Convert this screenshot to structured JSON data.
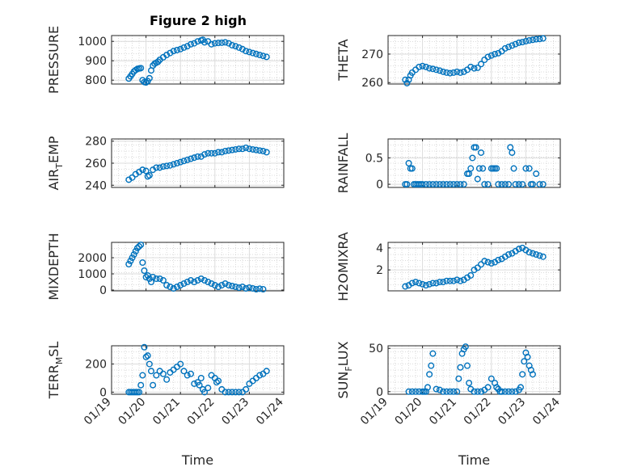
{
  "figure": {
    "title": "Figure 2 high"
  },
  "chart_data": [
    {
      "type": "scatter",
      "name": "PRESSURE",
      "ylabel": "PRESSURE",
      "ylim": [
        780,
        1030
      ],
      "yticks": [
        800,
        900,
        1000
      ],
      "yticklabels": [
        "800",
        "900",
        "1000"
      ],
      "xlim": [
        0,
        5
      ],
      "grid": true,
      "marker_color": "#0072BD",
      "x": [
        0.5,
        0.55,
        0.6,
        0.65,
        0.7,
        0.75,
        0.8,
        0.85,
        0.9,
        0.95,
        1.0,
        1.05,
        1.1,
        1.15,
        1.2,
        1.25,
        1.3,
        1.35,
        1.4,
        1.5,
        1.6,
        1.7,
        1.8,
        1.9,
        2.0,
        2.1,
        2.2,
        2.3,
        2.4,
        2.5,
        2.6,
        2.65,
        2.7,
        2.8,
        2.9,
        3.0,
        3.1,
        3.2,
        3.3,
        3.4,
        3.5,
        3.6,
        3.7,
        3.8,
        3.9,
        4.0,
        4.1,
        4.2,
        4.3,
        4.4,
        4.5
      ],
      "y": [
        808,
        820,
        832,
        845,
        852,
        858,
        860,
        862,
        800,
        790,
        788,
        795,
        810,
        850,
        875,
        885,
        890,
        895,
        905,
        918,
        930,
        940,
        950,
        955,
        960,
        968,
        975,
        985,
        990,
        1000,
        1005,
        1008,
        995,
        1000,
        985,
        990,
        992,
        993,
        995,
        990,
        980,
        975,
        968,
        960,
        950,
        945,
        940,
        935,
        930,
        925,
        920
      ]
    },
    {
      "type": "scatter",
      "name": "THETA",
      "ylabel": "THETA",
      "ylim": [
        259.5,
        276.5
      ],
      "yticks": [
        260,
        270
      ],
      "yticklabels": [
        "260",
        "270"
      ],
      "xlim": [
        0,
        5
      ],
      "grid": true,
      "marker_color": "#0072BD",
      "x": [
        0.5,
        0.55,
        0.6,
        0.65,
        0.7,
        0.8,
        0.9,
        1.0,
        1.1,
        1.2,
        1.3,
        1.4,
        1.5,
        1.6,
        1.7,
        1.8,
        1.9,
        2.0,
        2.1,
        2.2,
        2.3,
        2.4,
        2.5,
        2.6,
        2.7,
        2.8,
        2.9,
        3.0,
        3.1,
        3.2,
        3.3,
        3.4,
        3.5,
        3.6,
        3.7,
        3.8,
        3.9,
        4.0,
        4.1,
        4.2,
        4.3,
        4.4,
        4.5
      ],
      "y": [
        261,
        259.8,
        261,
        262.5,
        263.5,
        264.5,
        265.5,
        265.8,
        265.5,
        265,
        264.8,
        264.5,
        264.2,
        263.8,
        263.5,
        263.3,
        263.5,
        263.8,
        263.5,
        263.8,
        264.5,
        265.5,
        265,
        265.2,
        266.5,
        268,
        269,
        269.5,
        270,
        270.3,
        271,
        272,
        272.5,
        273,
        273.5,
        274,
        274.2,
        274.5,
        274.8,
        275,
        275.2,
        275.3,
        275.5
      ]
    },
    {
      "type": "scatter",
      "name": "AIR_TEMP",
      "ylabel": "AIR_TEMP",
      "ylim": [
        238,
        282
      ],
      "yticks": [
        240,
        260,
        280
      ],
      "yticklabels": [
        "240",
        "260",
        "280"
      ],
      "xlim": [
        0,
        5
      ],
      "grid": true,
      "marker_color": "#0072BD",
      "x": [
        0.5,
        0.6,
        0.7,
        0.8,
        0.9,
        1.0,
        1.05,
        1.1,
        1.2,
        1.3,
        1.4,
        1.5,
        1.6,
        1.7,
        1.8,
        1.9,
        2.0,
        2.1,
        2.2,
        2.3,
        2.4,
        2.5,
        2.6,
        2.7,
        2.8,
        2.9,
        3.0,
        3.1,
        3.2,
        3.3,
        3.4,
        3.5,
        3.6,
        3.7,
        3.8,
        3.9,
        4.0,
        4.1,
        4.2,
        4.3,
        4.4,
        4.5
      ],
      "y": [
        245,
        247,
        250,
        252,
        254,
        253,
        248,
        249,
        254,
        256,
        256,
        257,
        257.5,
        258,
        259,
        260,
        261,
        262,
        263,
        264,
        265,
        266,
        266,
        268,
        269,
        269,
        269,
        270,
        270,
        271,
        271.5,
        272,
        272.5,
        273,
        273,
        274,
        273,
        272.5,
        272,
        271.5,
        271,
        270
      ]
    },
    {
      "type": "scatter",
      "name": "RAINFALL",
      "ylabel": "RAINFALL",
      "ylim": [
        -0.06,
        0.86
      ],
      "yticks": [
        0,
        0.5
      ],
      "yticklabels": [
        "0",
        "0.5"
      ],
      "xlim": [
        0,
        5
      ],
      "grid": true,
      "marker_color": "#0072BD",
      "x": [
        0.5,
        0.55,
        0.6,
        0.65,
        0.7,
        0.75,
        0.8,
        0.85,
        0.9,
        0.95,
        1.0,
        1.1,
        1.2,
        1.3,
        1.4,
        1.5,
        1.6,
        1.7,
        1.8,
        1.9,
        2.0,
        2.1,
        2.2,
        2.3,
        2.35,
        2.4,
        2.45,
        2.5,
        2.55,
        2.6,
        2.65,
        2.7,
        2.75,
        2.8,
        2.9,
        3.0,
        3.05,
        3.1,
        3.15,
        3.2,
        3.3,
        3.4,
        3.5,
        3.55,
        3.6,
        3.65,
        3.7,
        3.8,
        3.9,
        4.0,
        4.1,
        4.15,
        4.2,
        4.3,
        4.4,
        4.5
      ],
      "y": [
        0,
        0,
        0.4,
        0.3,
        0.3,
        0,
        0,
        0,
        0,
        0,
        0,
        0,
        0,
        0,
        0,
        0,
        0,
        0,
        0,
        0,
        0,
        0,
        0,
        0.2,
        0.2,
        0.3,
        0.5,
        0.7,
        0.7,
        0.1,
        0.3,
        0.6,
        0.3,
        0,
        0,
        0.3,
        0.3,
        0.3,
        0.3,
        0,
        0,
        0,
        0,
        0.7,
        0.6,
        0.3,
        0,
        0,
        0,
        0.3,
        0.3,
        0,
        0,
        0.2,
        0,
        0
      ]
    },
    {
      "type": "scatter",
      "name": "MIXDEPTH",
      "ylabel": "MIXDEPTH",
      "ylim": [
        -50,
        2950
      ],
      "yticks": [
        0,
        1000,
        2000
      ],
      "yticklabels": [
        "0",
        "1000",
        "2000"
      ],
      "xlim": [
        0,
        5
      ],
      "grid": true,
      "marker_color": "#0072BD",
      "x": [
        0.5,
        0.55,
        0.6,
        0.65,
        0.7,
        0.75,
        0.8,
        0.85,
        0.9,
        0.95,
        1.0,
        1.05,
        1.1,
        1.15,
        1.2,
        1.3,
        1.4,
        1.5,
        1.6,
        1.7,
        1.8,
        1.9,
        2.0,
        2.1,
        2.2,
        2.3,
        2.4,
        2.5,
        2.6,
        2.7,
        2.8,
        2.9,
        3.0,
        3.1,
        3.2,
        3.3,
        3.4,
        3.5,
        3.6,
        3.7,
        3.8,
        3.9,
        4.0,
        4.1,
        4.2,
        4.3,
        4.4
      ],
      "y": [
        1600,
        1800,
        2000,
        2200,
        2400,
        2600,
        2700,
        2800,
        1700,
        1200,
        800,
        900,
        700,
        500,
        800,
        700,
        700,
        600,
        300,
        200,
        100,
        200,
        300,
        400,
        500,
        600,
        500,
        600,
        700,
        600,
        500,
        400,
        300,
        200,
        300,
        400,
        300,
        250,
        200,
        150,
        200,
        100,
        150,
        100,
        50,
        80,
        50
      ]
    },
    {
      "type": "scatter",
      "name": "H2OMIXRA",
      "ylabel": "H2OMIXRA",
      "ylim": [
        0.1,
        4.5
      ],
      "yticks": [
        2,
        4
      ],
      "yticklabels": [
        "2",
        "4"
      ],
      "xlim": [
        0,
        5
      ],
      "grid": true,
      "marker_color": "#0072BD",
      "x": [
        0.5,
        0.6,
        0.7,
        0.8,
        0.9,
        1.0,
        1.1,
        1.2,
        1.3,
        1.4,
        1.5,
        1.6,
        1.7,
        1.8,
        1.9,
        2.0,
        2.1,
        2.2,
        2.3,
        2.4,
        2.5,
        2.6,
        2.7,
        2.8,
        2.9,
        3.0,
        3.1,
        3.2,
        3.3,
        3.4,
        3.5,
        3.6,
        3.7,
        3.8,
        3.9,
        4.0,
        4.1,
        4.2,
        4.3,
        4.4,
        4.5
      ],
      "y": [
        0.5,
        0.6,
        0.8,
        0.9,
        0.8,
        0.7,
        0.6,
        0.7,
        0.8,
        0.8,
        0.9,
        0.9,
        1.0,
        1.0,
        1.0,
        1.1,
        1.0,
        1.1,
        1.3,
        1.5,
        2.0,
        2.2,
        2.5,
        2.8,
        2.7,
        2.6,
        2.7,
        2.9,
        3.0,
        3.2,
        3.4,
        3.5,
        3.7,
        3.9,
        4.0,
        3.8,
        3.6,
        3.5,
        3.4,
        3.3,
        3.2
      ]
    },
    {
      "type": "scatter",
      "name": "TERR_MSL",
      "ylabel": "TERR_MSL",
      "ylim": [
        -15,
        330
      ],
      "yticks": [
        0,
        200
      ],
      "yticklabels": [
        "0",
        "200"
      ],
      "xlim": [
        0,
        5
      ],
      "grid": true,
      "marker_color": "#0072BD",
      "x": [
        0.5,
        0.55,
        0.6,
        0.65,
        0.7,
        0.75,
        0.8,
        0.85,
        0.9,
        0.95,
        1.0,
        1.05,
        1.1,
        1.15,
        1.2,
        1.3,
        1.4,
        1.5,
        1.6,
        1.7,
        1.8,
        1.9,
        2.0,
        2.1,
        2.2,
        2.3,
        2.4,
        2.5,
        2.55,
        2.6,
        2.65,
        2.7,
        2.8,
        2.9,
        3.0,
        3.05,
        3.1,
        3.2,
        3.3,
        3.4,
        3.5,
        3.6,
        3.7,
        3.8,
        3.9,
        4.0,
        4.1,
        4.2,
        4.3,
        4.4,
        4.5
      ],
      "y": [
        0,
        0,
        0,
        0,
        0,
        0,
        0,
        50,
        120,
        320,
        250,
        260,
        200,
        150,
        50,
        120,
        150,
        130,
        90,
        140,
        160,
        180,
        200,
        150,
        120,
        130,
        60,
        70,
        50,
        100,
        20,
        0,
        30,
        120,
        100,
        70,
        80,
        20,
        0,
        0,
        0,
        0,
        0,
        0,
        20,
        60,
        80,
        100,
        120,
        130,
        150
      ]
    },
    {
      "type": "scatter",
      "name": "SUN_FLUX",
      "ylabel": "SUN_FLUX",
      "ylim": [
        -3,
        53
      ],
      "yticks": [
        0,
        50
      ],
      "yticklabels": [
        "0",
        "50"
      ],
      "xlim": [
        0,
        5
      ],
      "grid": true,
      "marker_color": "#0072BD",
      "x": [
        0.6,
        0.7,
        0.8,
        0.9,
        1.0,
        1.05,
        1.1,
        1.15,
        1.2,
        1.25,
        1.3,
        1.4,
        1.5,
        1.6,
        1.7,
        1.8,
        1.9,
        2.0,
        2.05,
        2.1,
        2.15,
        2.2,
        2.25,
        2.3,
        2.35,
        2.4,
        2.5,
        2.6,
        2.7,
        2.8,
        2.9,
        3.0,
        3.1,
        3.15,
        3.2,
        3.25,
        3.3,
        3.4,
        3.5,
        3.6,
        3.7,
        3.8,
        3.85,
        3.9,
        3.95,
        4.0,
        4.05,
        4.1,
        4.15,
        4.2
      ],
      "y": [
        0,
        0,
        0,
        0,
        0,
        0,
        0,
        5,
        20,
        30,
        44,
        3,
        2,
        0,
        0,
        0,
        0,
        0,
        15,
        28,
        44,
        49,
        52,
        30,
        10,
        3,
        0,
        0,
        0,
        2,
        5,
        15,
        10,
        5,
        3,
        0,
        0,
        0,
        0,
        0,
        0,
        2,
        5,
        20,
        35,
        45,
        40,
        30,
        25,
        20
      ]
    }
  ],
  "axes": {
    "xticklabels": [
      "01/19",
      "01/20",
      "01/21",
      "01/22",
      "01/23",
      "01/24"
    ],
    "xlabel": "Time",
    "ylabels": {
      "air_temp": {
        "main": "AIR",
        "sub": "T",
        "rest": "EMP"
      },
      "terr_msl": {
        "main": "TERR",
        "sub": "M",
        "rest": "SL"
      },
      "sun_flux": {
        "main": "SUN",
        "sub": "F",
        "rest": "LUX"
      }
    }
  }
}
